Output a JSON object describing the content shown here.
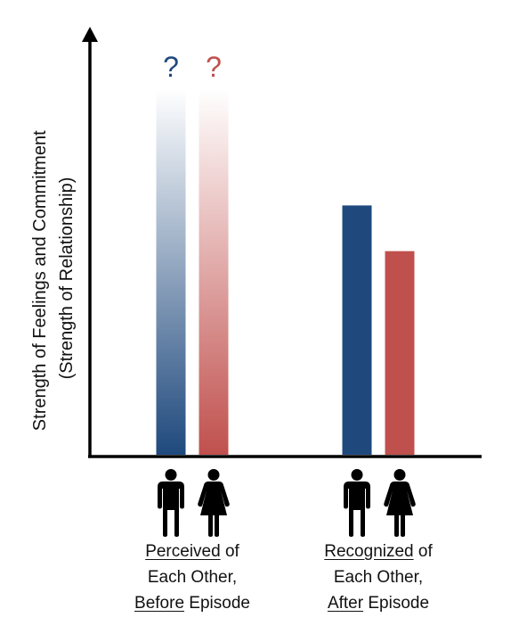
{
  "chart_data": {
    "type": "bar",
    "ylabel_lines": [
      "Strength of Feelings and Commitment",
      "(Strength of Relationship)"
    ],
    "ylim": [
      0,
      100
    ],
    "grid": false,
    "legend": "none",
    "categories": [
      {
        "lines": [
          {
            "underlined": "Perceived",
            "rest": " of"
          },
          {
            "underlined": "",
            "rest": "Each Other,"
          },
          {
            "underlined": "Before",
            "rest": " Episode"
          }
        ]
      },
      {
        "lines": [
          {
            "underlined": "Recognized",
            "rest": " of"
          },
          {
            "underlined": "",
            "rest": "Each Other,"
          },
          {
            "underlined": "After",
            "rest": " Episode"
          }
        ]
      }
    ],
    "series": [
      {
        "icon": "man-icon",
        "color": "#1f497d",
        "values": [
          null,
          60
        ],
        "unknown_marker": "?"
      },
      {
        "icon": "woman-icon",
        "color": "#c0504d",
        "values": [
          null,
          49
        ],
        "unknown_marker": "?"
      }
    ]
  }
}
